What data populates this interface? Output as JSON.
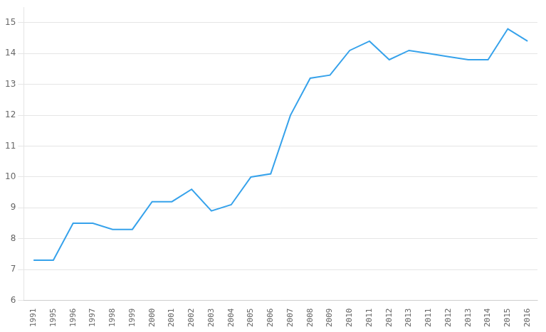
{
  "chart_data": {
    "type": "line",
    "categories": [
      "1991",
      "1995",
      "1996",
      "1997",
      "1998",
      "1999",
      "2000",
      "2001",
      "2002",
      "2003",
      "2004",
      "2005",
      "2006",
      "2007",
      "2008",
      "2009",
      "2010",
      "2011",
      "2012",
      "2013",
      "2011",
      "2012",
      "2013",
      "2014",
      "2015",
      "2016"
    ],
    "values": [
      7.3,
      7.3,
      8.5,
      8.5,
      8.3,
      8.3,
      9.2,
      9.2,
      9.6,
      8.9,
      9.1,
      10.0,
      10.1,
      12.0,
      13.2,
      13.3,
      14.1,
      14.4,
      13.8,
      14.1,
      14.0,
      13.9,
      13.8,
      13.8,
      14.8,
      14.4
    ],
    "ylim": [
      6,
      15.5
    ],
    "yticks": [
      6,
      7,
      8,
      9,
      10,
      11,
      12,
      13,
      14,
      15
    ],
    "grid": true
  }
}
